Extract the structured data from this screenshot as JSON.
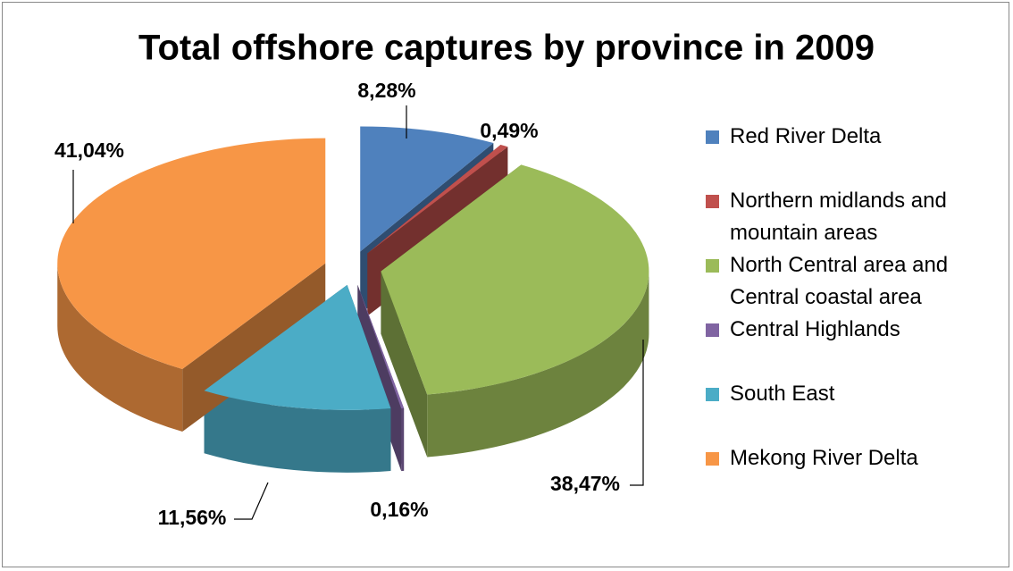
{
  "chart_data": {
    "type": "pie",
    "title": "Total offshore captures by province in 2009",
    "categories": [
      "Red River Delta",
      "Northern midlands and mountain areas",
      "North Central area and Central coastal area",
      "Central Highlands",
      "South East",
      "Mekong River Delta"
    ],
    "values": [
      8.28,
      0.49,
      38.47,
      0.16,
      11.56,
      41.04
    ],
    "value_labels": [
      "8,28%",
      "0,49%",
      "38,47%",
      "0,16%",
      "11,56%",
      "41,04%"
    ],
    "colors": [
      "#4f81bd",
      "#c0504d",
      "#9bbb59",
      "#8064a2",
      "#4bacc6",
      "#f79646"
    ],
    "legend": "right"
  }
}
